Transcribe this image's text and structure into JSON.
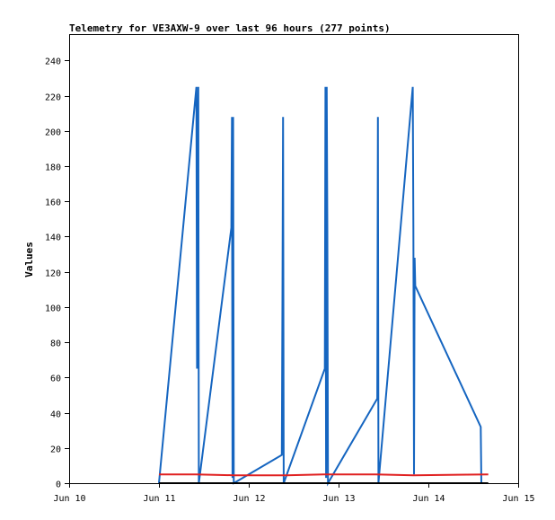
{
  "chart_data": {
    "type": "line",
    "title": "Telemetry for VE3AXW-9 over last 96 hours (277 points)",
    "xlabel": "",
    "ylabel": "Values",
    "x_tick_labels": [
      "Jun 10",
      "Jun 11",
      "Jun 12",
      "Jun 13",
      "Jun 14",
      "Jun 15"
    ],
    "y_ticks": [
      0,
      20,
      40,
      60,
      80,
      100,
      120,
      140,
      160,
      180,
      200,
      220,
      240
    ],
    "xlim": [
      "Jun 10",
      "Jun 15"
    ],
    "ylim": [
      0,
      255
    ],
    "grid": false,
    "legend": "none",
    "series": [
      {
        "color": "#1565c0",
        "x": [
          "2024-06-11 00:00",
          "2024-06-11 10:00",
          "2024-06-11 10:10",
          "2024-06-11 10:20",
          "2024-06-11 10:30",
          "2024-06-11 10:40",
          "2024-06-11 19:20",
          "2024-06-11 19:30",
          "2024-06-11 19:40",
          "2024-06-11 19:50",
          "2024-06-11 20:00",
          "2024-06-12 08:50",
          "2024-06-12 09:00",
          "2024-06-12 09:10",
          "2024-06-12 09:20",
          "2024-06-12 20:20",
          "2024-06-12 20:30",
          "2024-06-12 20:40",
          "2024-06-12 20:50",
          "2024-06-12 21:00",
          "2024-06-12 21:10",
          "2024-06-13 10:20",
          "2024-06-13 10:30",
          "2024-06-13 10:40",
          "2024-06-13 19:50",
          "2024-06-13 20:00",
          "2024-06-13 20:10",
          "2024-06-13 20:20",
          "2024-06-13 20:30",
          "2024-06-14 14:00",
          "2024-06-14 14:10"
        ],
        "y": [
          0,
          225,
          65,
          145,
          225,
          0,
          145,
          208,
          3,
          208,
          0,
          16,
          104,
          208,
          0,
          65,
          225,
          3,
          225,
          145,
          0,
          48,
          208,
          0,
          225,
          145,
          5,
          128,
          112,
          32,
          0
        ]
      },
      {
        "color": "#e02020",
        "x": [
          "2024-06-11 00:00",
          "2024-06-11 10:00",
          "2024-06-11 20:00",
          "2024-06-12 10:00",
          "2024-06-12 20:00",
          "2024-06-13 10:00",
          "2024-06-13 20:00",
          "2024-06-14 16:00"
        ],
        "y": [
          5,
          5,
          4.5,
          4.5,
          5,
          5,
          4.5,
          5
        ]
      },
      {
        "color": "#000000",
        "x": [
          "2024-06-11 00:00",
          "2024-06-14 16:00"
        ],
        "y": [
          0,
          0
        ]
      }
    ]
  }
}
